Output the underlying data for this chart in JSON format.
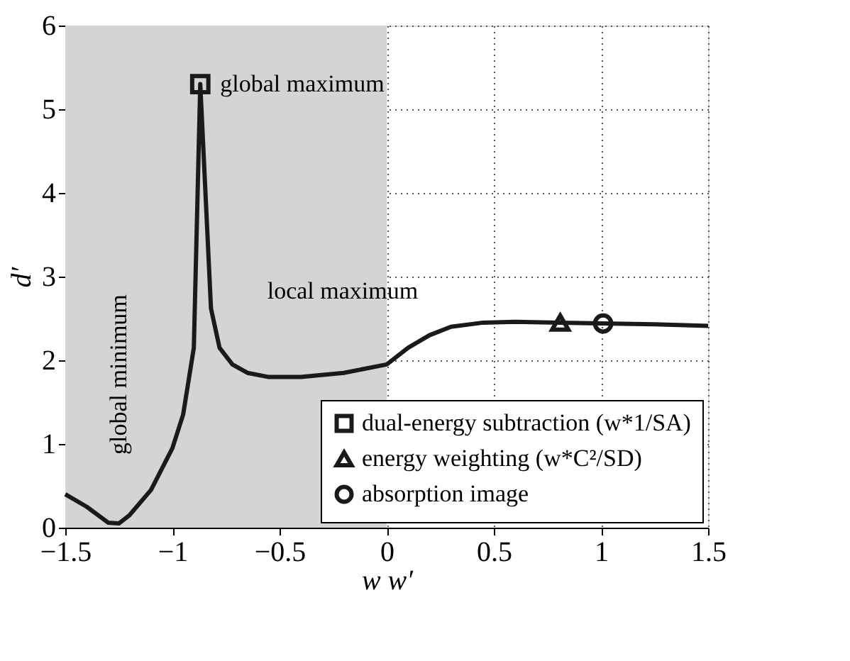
{
  "chart_data": {
    "type": "line",
    "xlabel": "w          w′",
    "ylabel": "d′",
    "xlim": [
      -1.5,
      1.5
    ],
    "ylim": [
      0,
      6
    ],
    "xticks": [
      -1.5,
      -1,
      -0.5,
      0,
      0.5,
      1,
      1.5
    ],
    "yticks": [
      0,
      1,
      2,
      3,
      4,
      5,
      6
    ],
    "grid": true,
    "legend": "bottom right",
    "bands": [
      {
        "axis": "x",
        "from": -1.5,
        "to": 0,
        "color": "#d4d4d6"
      }
    ],
    "series": [
      {
        "color": "#1a1a1a",
        "line_style": "solid",
        "marker": "none",
        "x": [
          -1.5,
          -1.4,
          -1.3,
          -1.25,
          -1.2,
          -1.1,
          -1.0,
          -0.95,
          -0.9,
          -0.87,
          -0.82,
          -0.78,
          -0.72,
          -0.65,
          -0.55,
          -0.4,
          -0.2,
          0,
          0.1,
          0.2,
          0.3,
          0.45,
          0.6,
          0.81,
          1.0,
          1.25,
          1.5
        ],
        "values": [
          0.4,
          0.25,
          0.06,
          0.05,
          0.15,
          0.45,
          0.95,
          1.35,
          2.15,
          5.3,
          2.62,
          2.15,
          1.95,
          1.85,
          1.8,
          1.8,
          1.85,
          1.95,
          2.15,
          2.3,
          2.4,
          2.45,
          2.46,
          2.45,
          2.44,
          2.43,
          2.41
        ]
      },
      {
        "type": "scatter",
        "name": "dual-energy subtraction (w*1/SA)",
        "color": "#1a1a1a",
        "marker": "square",
        "x": [
          -0.87
        ],
        "values": [
          5.3
        ]
      },
      {
        "type": "scatter",
        "name": "energy weighting (w*C²/SD)",
        "color": "#1a1a1a",
        "marker": "triangle",
        "x": [
          0.81
        ],
        "values": [
          2.45
        ]
      },
      {
        "type": "scatter",
        "name": "absorption image",
        "color": "#1a1a1a",
        "marker": "circle",
        "x": [
          1.01
        ],
        "values": [
          2.44
        ]
      }
    ],
    "annotations": [
      {
        "text": "global maximum",
        "x": -0.87,
        "y": 5.3
      },
      {
        "text": "local maximum",
        "x": 0.45,
        "y": 2.45
      },
      {
        "text": "global minimum",
        "x": -1.25,
        "y": 0.05
      }
    ]
  }
}
